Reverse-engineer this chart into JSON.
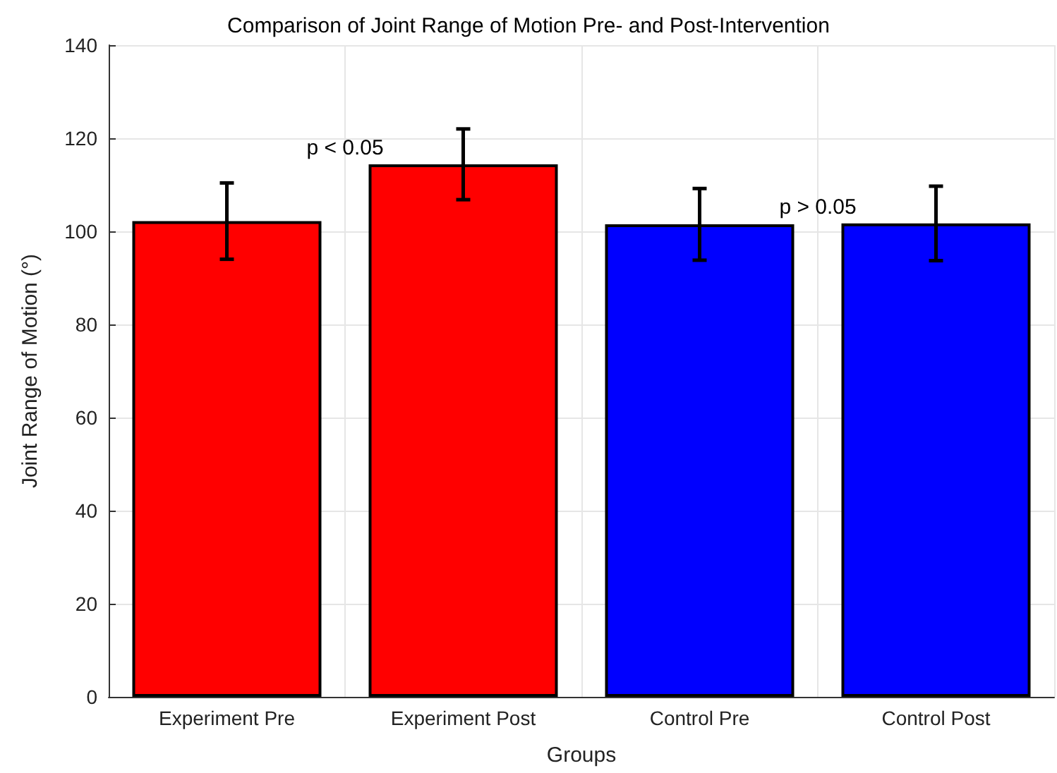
{
  "chart_data": {
    "type": "bar",
    "title": "Comparison of Joint Range of Motion Pre- and Post-Intervention",
    "xlabel": "Groups",
    "ylabel": "Joint Range of Motion (°)",
    "categories": [
      "Experiment Pre",
      "Experiment Post",
      "Control Pre",
      "Control Post"
    ],
    "values": [
      102.2,
      114.4,
      101.5,
      101.7
    ],
    "colors": [
      "#ff0000",
      "#ff0000",
      "#0000ff",
      "#0000ff"
    ],
    "errors": [
      8.2,
      7.6,
      7.7,
      8.0
    ],
    "ylim": [
      0,
      140
    ],
    "yticks": [
      0,
      20,
      40,
      60,
      80,
      100,
      120,
      140
    ],
    "grid": true,
    "annotations": [
      "p < 0.05",
      "p > 0.05"
    ]
  }
}
